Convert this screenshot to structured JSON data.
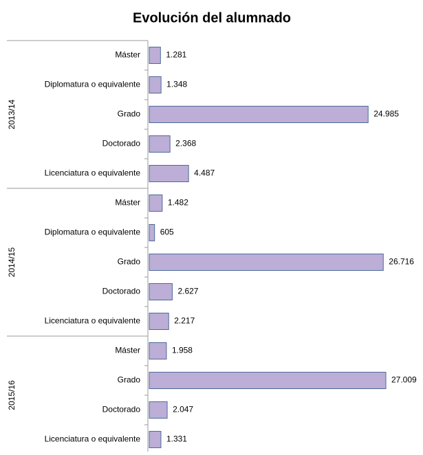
{
  "chart_data": {
    "type": "bar",
    "title": "Evolución del alumnado",
    "orientation": "horizontal",
    "color": "#bcaed6",
    "edge_color": "#4a6a9c",
    "groups": [
      {
        "name": "2013/14",
        "categories": [
          "Máster",
          "Diplomatura o equivalente",
          "Grado",
          "Doctorado",
          "Licenciatura o equivalente"
        ],
        "values": [
          1281,
          1348,
          24985,
          2368,
          4487
        ],
        "value_labels": [
          "1.281",
          "1.348",
          "24.985",
          "2.368",
          "4.487"
        ]
      },
      {
        "name": "2014/15",
        "categories": [
          "Máster",
          "Diplomatura o equivalente",
          "Grado",
          "Doctorado",
          "Licenciatura o equivalente"
        ],
        "values": [
          1482,
          605,
          26716,
          2627,
          2217
        ],
        "value_labels": [
          "1.482",
          "605",
          "26.716",
          "2.627",
          "2.217"
        ]
      },
      {
        "name": "2015/16",
        "categories": [
          "Máster",
          "Grado",
          "Doctorado",
          "Licenciatura o equivalente"
        ],
        "values": [
          1958,
          27009,
          2047,
          1331
        ],
        "value_labels": [
          "1.958",
          "27.009",
          "2.047",
          "1.331"
        ]
      }
    ]
  }
}
